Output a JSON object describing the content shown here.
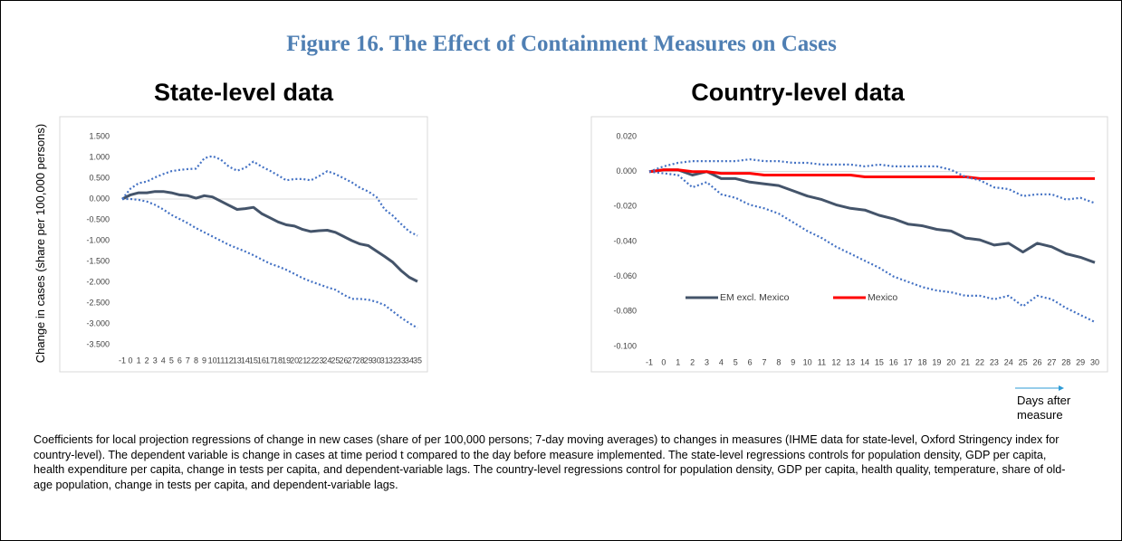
{
  "figure_title": "Figure 16. The Effect of Containment Measures on Cases",
  "y_axis_label": "Change in cases (share per 100,000 persons)",
  "x_axis_note": "Days after measure",
  "caption": "Coefficients for local projection regressions of change in new cases (share of per 100,000 persons; 7-day moving averages) to changes in measures (IHME data for state-level, Oxford Stringency index for country-level). The dependent variable is change in cases at time period t compared to the day before measure implemented. The state-level regressions controls for population density, GDP per capita, health expenditure per capita, change in tests per capita, and dependent-variable lags. The country-level regressions control for population density, GDP per capita, health quality, temperature, share of old-age population, change in tests per capita, and dependent-variable lags.",
  "chart_data": [
    {
      "type": "line",
      "title": "State-level data",
      "categories": [
        "-1",
        "0",
        "1",
        "2",
        "3",
        "4",
        "5",
        "6",
        "7",
        "8",
        "9",
        "10",
        "11",
        "12",
        "13",
        "14",
        "15",
        "16",
        "17",
        "18",
        "19",
        "20",
        "21",
        "22",
        "23",
        "24",
        "25",
        "26",
        "27",
        "28",
        "29",
        "30",
        "31",
        "32",
        "33",
        "34",
        "35"
      ],
      "ylim": [
        -3.5,
        1.5
      ],
      "yticks": [
        {
          "value": 1.5,
          "label": "1.500"
        },
        {
          "value": 1.0,
          "label": "1.000"
        },
        {
          "value": 0.5,
          "label": "0.500"
        },
        {
          "value": 0,
          "label": "0.000"
        },
        {
          "value": -0.5,
          "label": "-0.500"
        },
        {
          "value": -1.0,
          "label": "-1.000"
        },
        {
          "value": -1.5,
          "label": "-1.500"
        },
        {
          "value": -2.0,
          "label": "-2.000"
        },
        {
          "value": -2.5,
          "label": "-2.500"
        },
        {
          "value": -3.0,
          "label": "-3.000"
        },
        {
          "value": -3.5,
          "label": "-3.500"
        }
      ],
      "series": [
        {
          "color": "#44546a",
          "style": "solid",
          "values": [
            0,
            0.1,
            0.15,
            0.15,
            0.18,
            0.18,
            0.15,
            0.1,
            0.08,
            0.02,
            0.08,
            0.05,
            -0.05,
            -0.15,
            -0.25,
            -0.23,
            -0.2,
            -0.35,
            -0.45,
            -0.55,
            -0.62,
            -0.65,
            -0.73,
            -0.78,
            -0.76,
            -0.75,
            -0.8,
            -0.9,
            -1.0,
            -1.08,
            -1.12,
            -1.25,
            -1.38,
            -1.52,
            -1.72,
            -1.88,
            -1.98
          ]
        },
        {
          "color": "#4472c4",
          "style": "dotted",
          "values": [
            0,
            0.25,
            0.38,
            0.42,
            0.52,
            0.6,
            0.67,
            0.7,
            0.72,
            0.73,
            0.98,
            1.03,
            0.95,
            0.78,
            0.68,
            0.75,
            0.9,
            0.78,
            0.68,
            0.57,
            0.45,
            0.48,
            0.48,
            0.45,
            0.55,
            0.67,
            0.6,
            0.5,
            0.4,
            0.27,
            0.18,
            0.05,
            -0.25,
            -0.4,
            -0.6,
            -0.78,
            -0.88
          ]
        },
        {
          "color": "#4472c4",
          "style": "dotted",
          "values": [
            0,
            0,
            -0.02,
            -0.06,
            -0.14,
            -0.25,
            -0.38,
            -0.48,
            -0.58,
            -0.7,
            -0.8,
            -0.9,
            -1.0,
            -1.1,
            -1.18,
            -1.26,
            -1.35,
            -1.45,
            -1.55,
            -1.62,
            -1.7,
            -1.8,
            -1.9,
            -1.98,
            -2.05,
            -2.12,
            -2.18,
            -2.3,
            -2.4,
            -2.4,
            -2.42,
            -2.47,
            -2.55,
            -2.7,
            -2.85,
            -2.98,
            -3.1
          ]
        }
      ]
    },
    {
      "type": "line",
      "title": "Country-level data",
      "categories": [
        "-1",
        "0",
        "1",
        "2",
        "3",
        "4",
        "5",
        "6",
        "7",
        "8",
        "9",
        "10",
        "11",
        "12",
        "13",
        "14",
        "15",
        "16",
        "17",
        "18",
        "19",
        "20",
        "21",
        "22",
        "23",
        "24",
        "25",
        "26",
        "27",
        "28",
        "29",
        "30"
      ],
      "ylim": [
        -0.1,
        0.02
      ],
      "yticks": [
        {
          "value": 0.02,
          "label": "0.020"
        },
        {
          "value": 0,
          "label": "0.000"
        },
        {
          "value": -0.02,
          "label": "-0.020"
        },
        {
          "value": -0.04,
          "label": "-0.040"
        },
        {
          "value": -0.06,
          "label": "-0.060"
        },
        {
          "value": -0.08,
          "label": "-0.080"
        },
        {
          "value": -0.1,
          "label": "-0.100"
        }
      ],
      "legend": "lower left",
      "series": [
        {
          "name": "EM excl. Mexico",
          "color": "#44546a",
          "style": "solid",
          "values": [
            0,
            0.001,
            0.001,
            -0.002,
            0,
            -0.004,
            -0.004,
            -0.006,
            -0.007,
            -0.008,
            -0.011,
            -0.014,
            -0.016,
            -0.019,
            -0.021,
            -0.022,
            -0.025,
            -0.027,
            -0.03,
            -0.031,
            -0.033,
            -0.034,
            -0.038,
            -0.039,
            -0.042,
            -0.041,
            -0.046,
            -0.041,
            -0.043,
            -0.047,
            -0.049,
            -0.052
          ]
        },
        {
          "name": "Mexico",
          "color": "#ff0000",
          "style": "solid",
          "values": [
            0,
            0.001,
            0.001,
            0,
            0,
            -0.001,
            -0.001,
            -0.001,
            -0.002,
            -0.002,
            -0.002,
            -0.002,
            -0.002,
            -0.002,
            -0.002,
            -0.003,
            -0.003,
            -0.003,
            -0.003,
            -0.003,
            -0.003,
            -0.003,
            -0.003,
            -0.004,
            -0.004,
            -0.004,
            -0.004,
            -0.004,
            -0.004,
            -0.004,
            -0.004,
            -0.004
          ]
        },
        {
          "color": "#4472c4",
          "style": "dotted",
          "values": [
            0,
            0.003,
            0.005,
            0.006,
            0.006,
            0.006,
            0.006,
            0.007,
            0.006,
            0.006,
            0.005,
            0.005,
            0.004,
            0.004,
            0.004,
            0.003,
            0.004,
            0.003,
            0.003,
            0.003,
            0.003,
            0.001,
            -0.003,
            -0.005,
            -0.009,
            -0.01,
            -0.014,
            -0.013,
            -0.013,
            -0.016,
            -0.015,
            -0.018
          ]
        },
        {
          "color": "#4472c4",
          "style": "dotted",
          "values": [
            0,
            -0.001,
            -0.002,
            -0.009,
            -0.006,
            -0.013,
            -0.015,
            -0.019,
            -0.021,
            -0.024,
            -0.029,
            -0.034,
            -0.038,
            -0.043,
            -0.047,
            -0.051,
            -0.055,
            -0.06,
            -0.063,
            -0.066,
            -0.068,
            -0.069,
            -0.071,
            -0.071,
            -0.073,
            -0.071,
            -0.077,
            -0.071,
            -0.073,
            -0.078,
            -0.082,
            -0.086
          ]
        }
      ]
    }
  ]
}
